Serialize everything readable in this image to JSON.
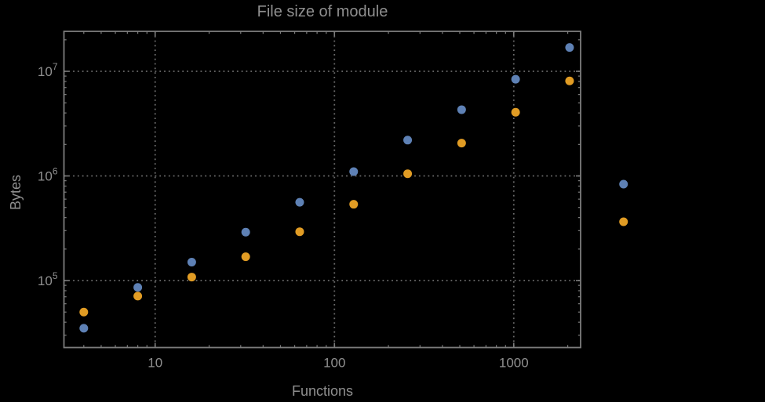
{
  "colors": {
    "background": "#000000",
    "frame": "#7c7c7c",
    "grid": "#6b6b6b",
    "text": "#8f8f8f",
    "series_blue": "#5e81b5",
    "series_orange": "#e19c24"
  },
  "chart_data": {
    "type": "scatter",
    "title": "File size of module",
    "xlabel": "Functions",
    "ylabel": "Bytes",
    "x_scale": "log",
    "y_scale": "log",
    "xlim": [
      3.1,
      2360
    ],
    "ylim": [
      22900,
      24100000
    ],
    "grid": "dotted at decades",
    "legend": "none",
    "x": [
      4,
      8,
      16,
      32,
      64,
      128,
      256,
      512,
      1024,
      2048,
      4096
    ],
    "series": [
      {
        "name": "series-blue",
        "color": "#5e81b5",
        "values": [
          35000,
          86000,
          150000,
          290000,
          560000,
          1100000,
          2200000,
          4300000,
          8400000,
          16900000,
          835000
        ]
      },
      {
        "name": "series-orange",
        "color": "#e19c24",
        "values": [
          50000,
          71000,
          108000,
          169000,
          293000,
          536000,
          1050000,
          2060000,
          4060000,
          8090000,
          365000
        ]
      }
    ],
    "x_ticks": [
      {
        "value": 10,
        "label": "10"
      },
      {
        "value": 100,
        "label": "100"
      },
      {
        "value": 1000,
        "label": "1000"
      }
    ],
    "y_ticks": [
      {
        "value": 100000,
        "mantissa": "10",
        "exponent": "5"
      },
      {
        "value": 1000000,
        "mantissa": "10",
        "exponent": "6"
      },
      {
        "value": 10000000,
        "mantissa": "10",
        "exponent": "7"
      }
    ]
  }
}
